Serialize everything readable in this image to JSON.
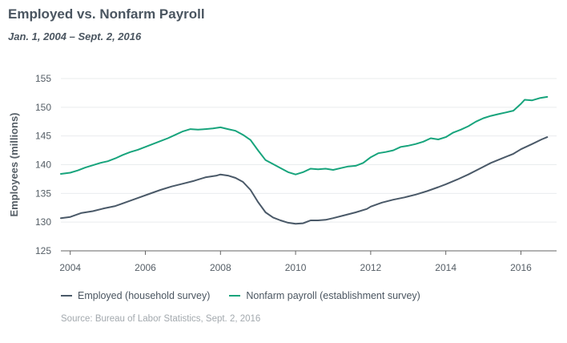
{
  "title": "Employed vs. Nonfarm Payroll",
  "subtitle": "Jan. 1, 2004 – Sept. 2, 2016",
  "source": "Source: Bureau of Labor Statistics, Sept. 2, 2016",
  "colors": {
    "employed": "#4a5968",
    "payroll": "#17a47c",
    "grid": "#e9ecee",
    "axis": "#666666"
  },
  "chart_data": {
    "type": "line",
    "title": "Employed vs. Nonfarm Payroll",
    "subtitle": "Jan. 1, 2004 – Sept. 2, 2016",
    "xlabel": "",
    "ylabel": "Employees (millions)",
    "xlim": [
      2003.75,
      2016.95
    ],
    "ylim": [
      125,
      155
    ],
    "xticks": [
      2004,
      2006,
      2008,
      2010,
      2012,
      2014,
      2016
    ],
    "xtick_labels": [
      "2004",
      "2006",
      "2008",
      "2010",
      "2012",
      "2014",
      "2016"
    ],
    "yticks": [
      125,
      130,
      135,
      140,
      145,
      150,
      155
    ],
    "ytick_labels": [
      "125",
      "130",
      "135",
      "140",
      "145",
      "150",
      "155"
    ],
    "grid": "horizontal",
    "legend": "bottom",
    "series": [
      {
        "name": "Employed (household survey)",
        "color": "#4a5968",
        "points": [
          [
            2003.75,
            130.7
          ],
          [
            2004.0,
            130.9
          ],
          [
            2004.3,
            131.6
          ],
          [
            2004.6,
            131.9
          ],
          [
            2004.9,
            132.4
          ],
          [
            2005.2,
            132.8
          ],
          [
            2005.5,
            133.5
          ],
          [
            2005.8,
            134.2
          ],
          [
            2006.1,
            134.9
          ],
          [
            2006.4,
            135.6
          ],
          [
            2006.7,
            136.2
          ],
          [
            2007.0,
            136.7
          ],
          [
            2007.3,
            137.2
          ],
          [
            2007.6,
            137.8
          ],
          [
            2007.9,
            138.1
          ],
          [
            2008.0,
            138.3
          ],
          [
            2008.2,
            138.1
          ],
          [
            2008.4,
            137.7
          ],
          [
            2008.6,
            137.0
          ],
          [
            2008.8,
            135.6
          ],
          [
            2009.0,
            133.5
          ],
          [
            2009.2,
            131.7
          ],
          [
            2009.4,
            130.8
          ],
          [
            2009.6,
            130.3
          ],
          [
            2009.8,
            129.9
          ],
          [
            2010.0,
            129.7
          ],
          [
            2010.2,
            129.8
          ],
          [
            2010.4,
            130.3
          ],
          [
            2010.6,
            130.3
          ],
          [
            2010.8,
            130.4
          ],
          [
            2011.0,
            130.7
          ],
          [
            2011.3,
            131.2
          ],
          [
            2011.6,
            131.7
          ],
          [
            2011.9,
            132.3
          ],
          [
            2012.0,
            132.7
          ],
          [
            2012.3,
            133.4
          ],
          [
            2012.6,
            133.9
          ],
          [
            2012.9,
            134.3
          ],
          [
            2013.2,
            134.8
          ],
          [
            2013.5,
            135.4
          ],
          [
            2013.8,
            136.1
          ],
          [
            2014.0,
            136.6
          ],
          [
            2014.3,
            137.4
          ],
          [
            2014.6,
            138.3
          ],
          [
            2014.9,
            139.3
          ],
          [
            2015.2,
            140.3
          ],
          [
            2015.5,
            141.1
          ],
          [
            2015.8,
            141.9
          ],
          [
            2016.0,
            142.7
          ],
          [
            2016.3,
            143.6
          ],
          [
            2016.55,
            144.4
          ],
          [
            2016.7,
            144.8
          ]
        ]
      },
      {
        "name": "Nonfarm payroll (establishment survey)",
        "color": "#17a47c",
        "points": [
          [
            2003.75,
            138.4
          ],
          [
            2004.0,
            138.6
          ],
          [
            2004.2,
            139.0
          ],
          [
            2004.4,
            139.5
          ],
          [
            2004.6,
            139.9
          ],
          [
            2004.8,
            140.3
          ],
          [
            2005.0,
            140.6
          ],
          [
            2005.2,
            141.1
          ],
          [
            2005.4,
            141.7
          ],
          [
            2005.6,
            142.2
          ],
          [
            2005.8,
            142.6
          ],
          [
            2006.0,
            143.1
          ],
          [
            2006.2,
            143.6
          ],
          [
            2006.4,
            144.1
          ],
          [
            2006.6,
            144.6
          ],
          [
            2006.8,
            145.2
          ],
          [
            2007.0,
            145.8
          ],
          [
            2007.2,
            146.2
          ],
          [
            2007.4,
            146.1
          ],
          [
            2007.6,
            146.2
          ],
          [
            2007.8,
            146.3
          ],
          [
            2008.0,
            146.5
          ],
          [
            2008.2,
            146.2
          ],
          [
            2008.4,
            145.9
          ],
          [
            2008.6,
            145.2
          ],
          [
            2008.8,
            144.3
          ],
          [
            2009.0,
            142.5
          ],
          [
            2009.2,
            140.8
          ],
          [
            2009.4,
            140.1
          ],
          [
            2009.6,
            139.4
          ],
          [
            2009.8,
            138.7
          ],
          [
            2010.0,
            138.3
          ],
          [
            2010.2,
            138.7
          ],
          [
            2010.4,
            139.3
          ],
          [
            2010.6,
            139.2
          ],
          [
            2010.8,
            139.3
          ],
          [
            2011.0,
            139.1
          ],
          [
            2011.2,
            139.4
          ],
          [
            2011.4,
            139.7
          ],
          [
            2011.6,
            139.8
          ],
          [
            2011.8,
            140.3
          ],
          [
            2012.0,
            141.3
          ],
          [
            2012.2,
            142.0
          ],
          [
            2012.4,
            142.2
          ],
          [
            2012.6,
            142.5
          ],
          [
            2012.8,
            143.1
          ],
          [
            2013.0,
            143.3
          ],
          [
            2013.2,
            143.6
          ],
          [
            2013.4,
            144.0
          ],
          [
            2013.6,
            144.6
          ],
          [
            2013.8,
            144.4
          ],
          [
            2014.0,
            144.8
          ],
          [
            2014.2,
            145.6
          ],
          [
            2014.4,
            146.1
          ],
          [
            2014.6,
            146.7
          ],
          [
            2014.8,
            147.5
          ],
          [
            2015.0,
            148.1
          ],
          [
            2015.2,
            148.5
          ],
          [
            2015.4,
            148.8
          ],
          [
            2015.6,
            149.1
          ],
          [
            2015.8,
            149.4
          ],
          [
            2016.0,
            150.6
          ],
          [
            2016.1,
            151.3
          ],
          [
            2016.3,
            151.2
          ],
          [
            2016.5,
            151.6
          ],
          [
            2016.7,
            151.8
          ]
        ]
      }
    ]
  }
}
